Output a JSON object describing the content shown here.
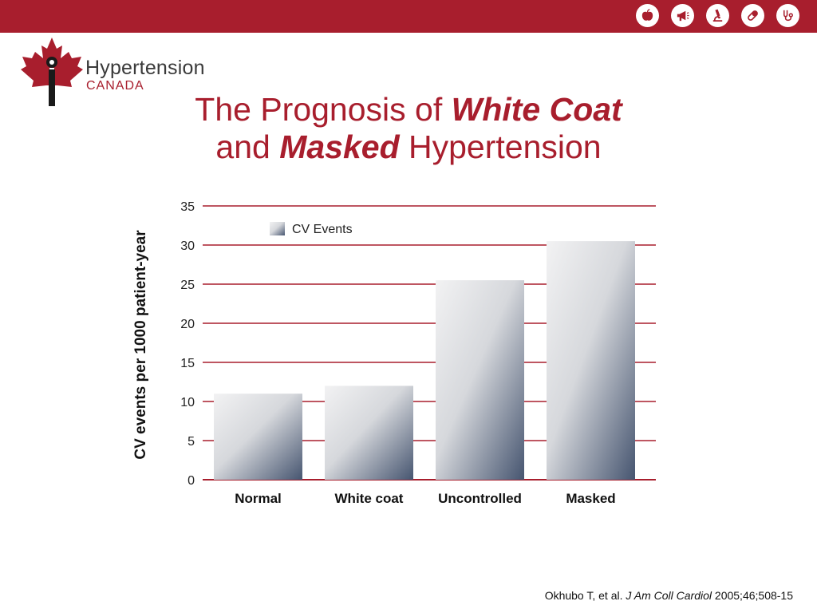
{
  "header": {
    "icons": [
      "apple-icon",
      "megaphone-icon",
      "microscope-icon",
      "pill-icon",
      "stethoscope-icon"
    ],
    "bar_color": "#a81e2d"
  },
  "logo": {
    "line1": "Hypertension",
    "line2": "CANADA"
  },
  "title": {
    "part1": "The Prognosis of ",
    "bold1": "White Coat",
    "part2": "and ",
    "bold2": "Masked",
    "part3": " Hypertension"
  },
  "chart_data": {
    "type": "bar",
    "categories": [
      "Normal",
      "White coat",
      "Uncontrolled",
      "Masked"
    ],
    "series": [
      {
        "name": "CV Events",
        "values": [
          11,
          12,
          25.5,
          30.5
        ]
      }
    ],
    "ylabel": "CV events per 1000 patient-year",
    "xlabel": "",
    "ylim": [
      0,
      35
    ],
    "yticks": [
      0,
      5,
      10,
      15,
      20,
      25,
      30,
      35
    ],
    "grid": true,
    "grid_color": "#a81e2d",
    "legend_position": "top-left"
  },
  "citation": {
    "authors": "Okhubo T, et al. ",
    "journal": "J Am Coll Cardiol",
    "details": " 2005;46;508-15"
  }
}
